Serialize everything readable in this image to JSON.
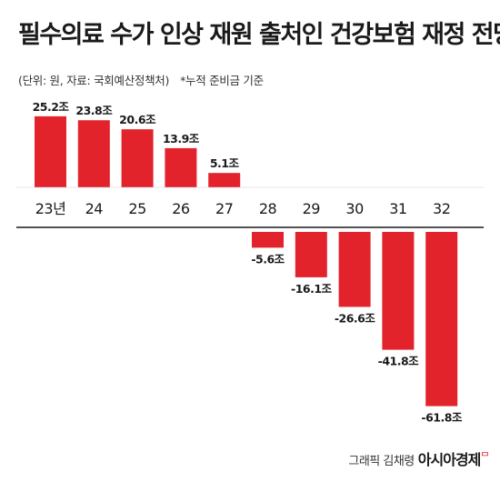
{
  "title": "필수의료 수가 인상 재원 출처인 건강보험 재정 전망",
  "subtitle": {
    "source": "(단위: 원, 자료: 국회예산정책처)",
    "note": "*누적 준비금 기준"
  },
  "credit": {
    "text": "그래픽 김채령",
    "brand": "아시아경제",
    "brand_mark": "ᄆ"
  },
  "colors": {
    "bar": "#e3232c",
    "axis": "#1a1a1a"
  },
  "chart_data": {
    "type": "bar",
    "categories": [
      "23년",
      "24",
      "25",
      "26",
      "27",
      "28",
      "29",
      "30",
      "31",
      "32"
    ],
    "values": [
      25.2,
      23.8,
      20.6,
      13.9,
      5.1,
      -5.6,
      -16.1,
      -26.6,
      -41.8,
      -61.8
    ],
    "value_labels": [
      "25.2조",
      "23.8조",
      "20.6조",
      "13.9조",
      "5.1조",
      "-5.6조",
      "-16.1조",
      "-26.6조",
      "-41.8조",
      "-61.8조"
    ],
    "title": "",
    "xlabel": "",
    "ylabel": "",
    "grid": false
  }
}
